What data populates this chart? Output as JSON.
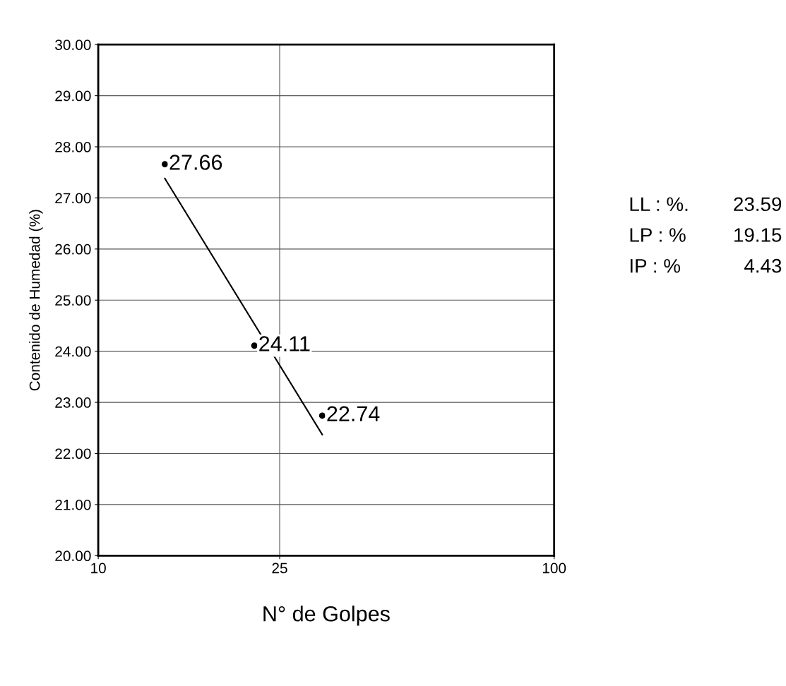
{
  "chart_data": {
    "type": "scatter",
    "xlabel": "N° de Golpes",
    "ylabel": "Contenido de Humedad (%)",
    "log": "x",
    "grid": true,
    "xlim": [
      10,
      100
    ],
    "xticks": [
      10,
      25,
      100
    ],
    "ylim": [
      20,
      30
    ],
    "yticks": [
      {
        "value": 20,
        "label": "20.00"
      },
      {
        "value": 21,
        "label": "21.00"
      },
      {
        "value": 22,
        "label": "22.00"
      },
      {
        "value": 23,
        "label": "23.00"
      },
      {
        "value": 24,
        "label": "24.00"
      },
      {
        "value": 25,
        "label": "25.00"
      },
      {
        "value": 26,
        "label": "26.00"
      },
      {
        "value": 27,
        "label": "27.00"
      },
      {
        "value": 28,
        "label": "28.00"
      },
      {
        "value": 29,
        "label": "29.00"
      },
      {
        "value": 30,
        "label": "30.00"
      }
    ],
    "series": [
      {
        "marker": "circle",
        "color": "#000000",
        "x": [
          14,
          22,
          31
        ],
        "values": [
          27.66,
          24.11,
          22.74
        ],
        "value_labels": [
          "27.66",
          "24.11",
          "22.74"
        ]
      },
      {
        "type": "line",
        "color": "#000000",
        "x": [
          14,
          31
        ],
        "values": [
          27.38,
          22.37
        ]
      }
    ],
    "annotations": [
      "LL : %.",
      "23.59",
      "LP : %",
      "19.15",
      "IP : %",
      "4.43"
    ]
  }
}
